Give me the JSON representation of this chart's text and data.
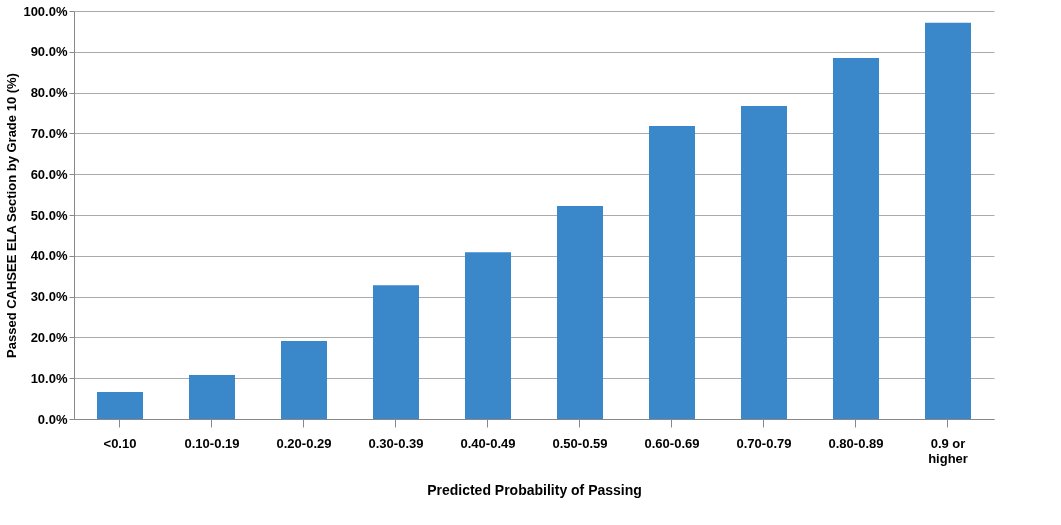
{
  "chart_data": {
    "type": "bar",
    "xlabel": "Predicted Probability of Passing",
    "ylabel": "Passed CAHSEE ELA Section  by Grade 10  (%)",
    "categories": [
      "<0.10",
      "0.10-0.19",
      "0.20-0.29",
      "0.30-0.39",
      "0.40-0.49",
      "0.50-0.59",
      "0.60-0.69",
      "0.70-0.79",
      "0.80-0.89",
      "0.9 or higher"
    ],
    "values": [
      6.6,
      10.8,
      19.1,
      32.8,
      40.9,
      52.2,
      71.8,
      76.7,
      88.5,
      97.1
    ],
    "color": "#3a87c9",
    "ylim": [
      0,
      100
    ],
    "yticks": [
      {
        "value": 0,
        "label": "0.0%"
      },
      {
        "value": 10,
        "label": "10.0%"
      },
      {
        "value": 20,
        "label": "20.0%"
      },
      {
        "value": 30,
        "label": "30.0%"
      },
      {
        "value": 40,
        "label": "40.0%"
      },
      {
        "value": 50,
        "label": "50.0%"
      },
      {
        "value": 60,
        "label": "60.0%"
      },
      {
        "value": 70,
        "label": "70.0%"
      },
      {
        "value": 80,
        "label": "80.0%"
      },
      {
        "value": 90,
        "label": "90.0%"
      },
      {
        "value": 100,
        "label": "100.0%"
      }
    ],
    "grid": "y"
  }
}
